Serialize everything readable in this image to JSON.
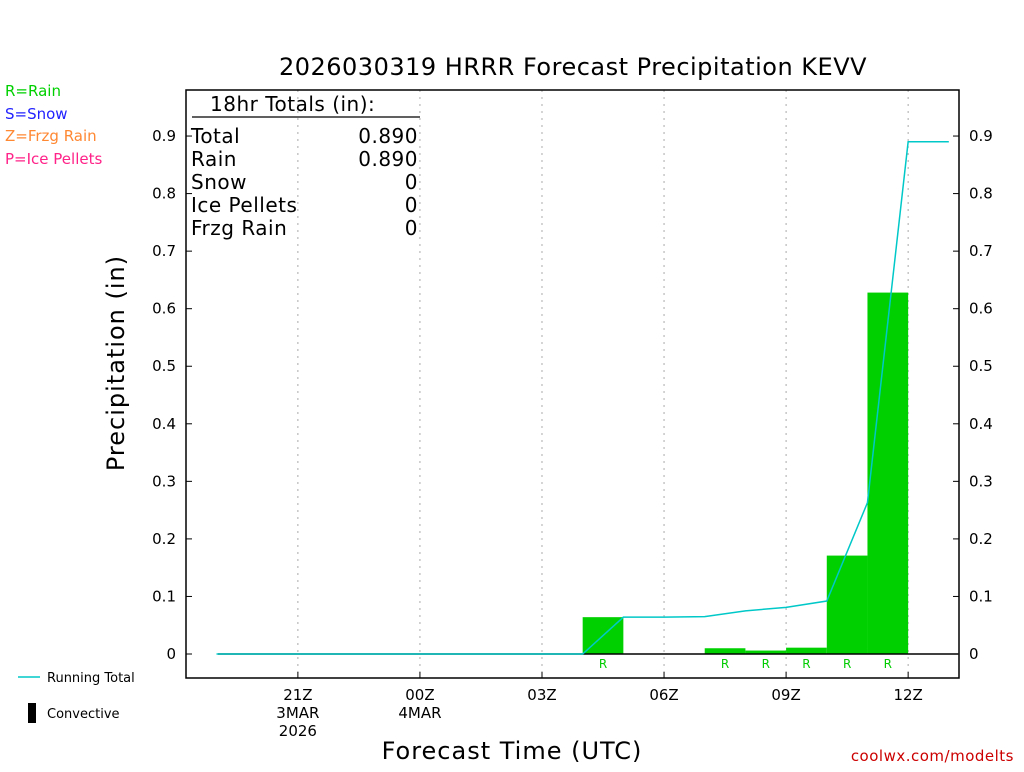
{
  "chart_data": {
    "type": "bar",
    "title": "2026030319 HRRR Forecast Precipitation KEVV",
    "xlabel": "Forecast Time (UTC)",
    "ylabel": "Precipitation (in)",
    "ylim": [
      0,
      0.98
    ],
    "yticks": [
      0,
      0.1,
      0.2,
      0.3,
      0.4,
      0.5,
      0.6,
      0.7,
      0.8,
      0.9
    ],
    "ytick_labels": [
      "0",
      "0.1",
      "0.2",
      "0.3",
      "0.4",
      "0.5",
      "0.6",
      "0.7",
      "0.8",
      "0.9"
    ],
    "x_range_hours": [
      -0.75,
      18.25
    ],
    "grid": "vertical dotted at major ticks",
    "x_ticks": [
      {
        "hour": 2,
        "lines": [
          "21Z",
          "3MAR",
          "2026"
        ]
      },
      {
        "hour": 5,
        "lines": [
          "00Z",
          "4MAR"
        ]
      },
      {
        "hour": 8,
        "lines": [
          "03Z"
        ]
      },
      {
        "hour": 11,
        "lines": [
          "06Z"
        ]
      },
      {
        "hour": 14,
        "lines": [
          "09Z"
        ]
      },
      {
        "hour": 17,
        "lines": [
          "12Z"
        ]
      }
    ],
    "hours": [
      1,
      2,
      3,
      4,
      5,
      6,
      7,
      8,
      9,
      10,
      11,
      12,
      13,
      14,
      15,
      16,
      17,
      18
    ],
    "series": [
      {
        "name": "Rain",
        "kind": "bar",
        "color": "#00d000",
        "values": [
          0,
          0,
          0,
          0,
          0,
          0,
          0,
          0,
          0,
          0.064,
          0,
          0,
          0.01,
          0.006,
          0.011,
          0.171,
          0.628,
          0
        ],
        "type_labels": [
          "",
          "",
          "",
          "",
          "",
          "",
          "",
          "",
          "",
          "R",
          "",
          "",
          "R",
          "R",
          "R",
          "R",
          "R",
          ""
        ]
      },
      {
        "name": "Running Total",
        "kind": "line",
        "color": "#00c8c8",
        "values": [
          0,
          0,
          0,
          0,
          0,
          0,
          0,
          0,
          0,
          0.064,
          0.064,
          0.065,
          0.075,
          0.081,
          0.092,
          0.263,
          0.89,
          0.89
        ]
      }
    ]
  },
  "legend_left": {
    "rain": {
      "text": "R=Rain",
      "color": "#00d000"
    },
    "snow": {
      "text": "S=Snow",
      "color": "#2222ff"
    },
    "zr": {
      "text": "Z=Frzg Rain",
      "color": "#ff8833"
    },
    "ip": {
      "text": "P=Ice Pellets",
      "color": "#ff2288"
    }
  },
  "legend_bottom": {
    "running_total": "Running Total",
    "convective": "Convective"
  },
  "totals_box": {
    "header": "18hr Totals (in):",
    "rows": [
      {
        "label": "Total",
        "value": "0.890"
      },
      {
        "label": "Rain",
        "value": "0.890"
      },
      {
        "label": "Snow",
        "value": "0"
      },
      {
        "label": "Ice Pellets",
        "value": "0"
      },
      {
        "label": "Frzg Rain",
        "value": "0"
      }
    ]
  },
  "watermark": "coolwx.com/modelts"
}
